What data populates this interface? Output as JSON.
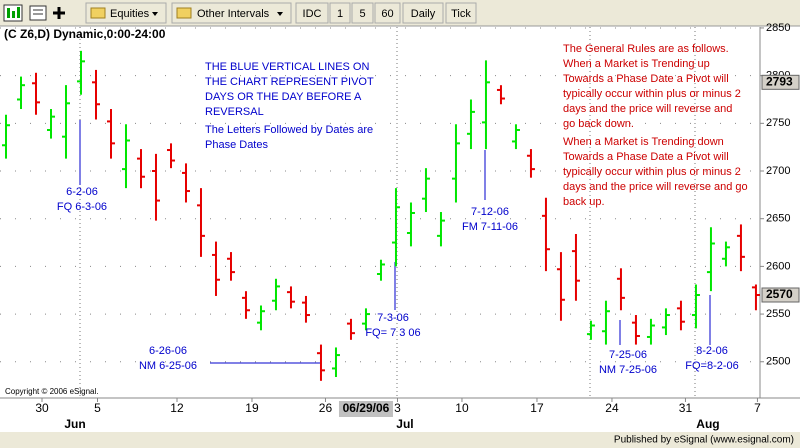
{
  "toolbar": {
    "buttons": [
      "Equities",
      "Other Intervals",
      "IDC",
      "1",
      "5",
      "60",
      "Daily",
      "Tick"
    ]
  },
  "chart_data": {
    "type": "ohlc",
    "title": "(C Z6,D) Dynamic,0:00-24:00",
    "copyright": "Copyright © 2006 eSignal.",
    "up_color": "#00e600",
    "down_color": "#e60000",
    "open": [
      2727,
      2775,
      2792,
      2743,
      2736,
      2794,
      2793,
      2752,
      2702,
      2713,
      2700,
      2722,
      2698,
      2664,
      2612,
      2608,
      2567,
      2541,
      2564,
      2573,
      2562,
      2509,
      2493,
      2540,
      2540,
      2592,
      2625,
      2635,
      2671,
      2632,
      2692,
      2739,
      2751,
      2785,
      2731,
      2716,
      2653,
      2597,
      2616,
      2529,
      2532,
      2587,
      2541,
      2526,
      2536,
      2556,
      2549,
      2594,
      2608,
      2632,
      2578
    ],
    "high": [
      2759,
      2799,
      2803,
      2765,
      2790,
      2826,
      2806,
      2765,
      2749,
      2723,
      2718,
      2729,
      2708,
      2682,
      2626,
      2615,
      2574,
      2559,
      2587,
      2579,
      2569,
      2518,
      2515,
      2545,
      2556,
      2607,
      2682,
      2667,
      2703,
      2657,
      2749,
      2775,
      2816,
      2790,
      2749,
      2723,
      2672,
      2615,
      2634,
      2543,
      2564,
      2598,
      2549,
      2545,
      2556,
      2564,
      2581,
      2641,
      2626,
      2644,
      2581
    ],
    "low": [
      2713,
      2765,
      2759,
      2734,
      2713,
      2780,
      2754,
      2713,
      2682,
      2682,
      2648,
      2703,
      2667,
      2610,
      2569,
      2585,
      2545,
      2533,
      2554,
      2556,
      2541,
      2480,
      2484,
      2523,
      2533,
      2585,
      2600,
      2621,
      2657,
      2621,
      2667,
      2723,
      2723,
      2770,
      2723,
      2693,
      2595,
      2543,
      2564,
      2523,
      2518,
      2554,
      2518,
      2518,
      2528,
      2533,
      2535,
      2574,
      2600,
      2595,
      2554
    ],
    "close": [
      2748,
      2790,
      2772,
      2757,
      2771,
      2815,
      2770,
      2729,
      2732,
      2694,
      2669,
      2711,
      2679,
      2632,
      2586,
      2594,
      2554,
      2553,
      2579,
      2563,
      2549,
      2491,
      2507,
      2530,
      2550,
      2602,
      2662,
      2656,
      2692,
      2648,
      2729,
      2762,
      2793,
      2776,
      2743,
      2702,
      2618,
      2565,
      2585,
      2538,
      2553,
      2567,
      2527,
      2538,
      2549,
      2542,
      2570,
      2624,
      2620,
      2610,
      2570
    ],
    "xlim": [
      -0.4,
      50.27
    ],
    "ylim": [
      2462,
      2851
    ],
    "yticks": [
      2500,
      2550,
      2600,
      2650,
      2700,
      2750,
      2800,
      2850
    ],
    "grid": true,
    "xticks": [
      {
        "value": 2.4,
        "label": "30"
      },
      {
        "value": 6.1,
        "label": "5"
      },
      {
        "value": 11.4,
        "label": "12"
      },
      {
        "value": 16.4,
        "label": "19"
      },
      {
        "value": 21.3,
        "label": "26"
      },
      {
        "value": 26.1,
        "label": "3"
      },
      {
        "value": 30.4,
        "label": "10"
      },
      {
        "value": 35.4,
        "label": "17"
      },
      {
        "value": 40.4,
        "label": "24"
      },
      {
        "value": 45.3,
        "label": "31"
      },
      {
        "value": 50.1,
        "label": "7"
      }
    ],
    "months": [
      {
        "value": 4.6,
        "label": "Jun"
      },
      {
        "value": 26.6,
        "label": "Jul"
      },
      {
        "value": 46.8,
        "label": "Aug"
      }
    ],
    "highlighted_date": {
      "value": 24,
      "label": "06/29/06"
    },
    "price_markers": [
      2793,
      2570
    ],
    "annotations": [
      {
        "color": "#0000cc",
        "lines": [
          "THE BLUE VERTICAL LINES ON",
          "THE CHART REPRESENT PIVOT",
          "DAYS OR THE DAY BEFORE A",
          "REVERSAL"
        ]
      },
      {
        "color": "#0000cc",
        "lines": [
          "The Letters Followed by Dates are",
          "Phase Dates"
        ]
      },
      {
        "color": "#cc0000",
        "lines": [
          "The General Rules are as follows.",
          "When a Market is Trending up",
          "Towards a Phase Date a Pivot will",
          "typically occur within plus or minus 2",
          "days and the price will reverse and",
          "go back down."
        ]
      },
      {
        "color": "#cc0000",
        "lines": [
          "When a Market is Trending down",
          "Towards a Phase Date a Pivot will",
          "typically occur within plus or minus 2",
          "days and the price will reverse and go",
          "back up."
        ]
      },
      {
        "color": "#0000cc",
        "lines": [
          "6-2-06",
          "FQ 6-3-06"
        ]
      },
      {
        "color": "#0000cc",
        "lines": [
          "7-12-06",
          "FM 7-11-06"
        ]
      },
      {
        "color": "#0000cc",
        "lines": [
          "6-26-06",
          "NM 6-25-06"
        ]
      },
      {
        "color": "#0000cc",
        "lines": [
          "7-3-06",
          "FQ= 7 3 06"
        ]
      },
      {
        "color": "#0000cc",
        "lines": [
          "7-25-06",
          "NM 7-25-06"
        ]
      },
      {
        "color": "#0000cc",
        "lines": [
          "8-2-06",
          "FQ=8-2-06"
        ]
      }
    ]
  },
  "footer": "Published by eSignal (www.esignal.com)"
}
